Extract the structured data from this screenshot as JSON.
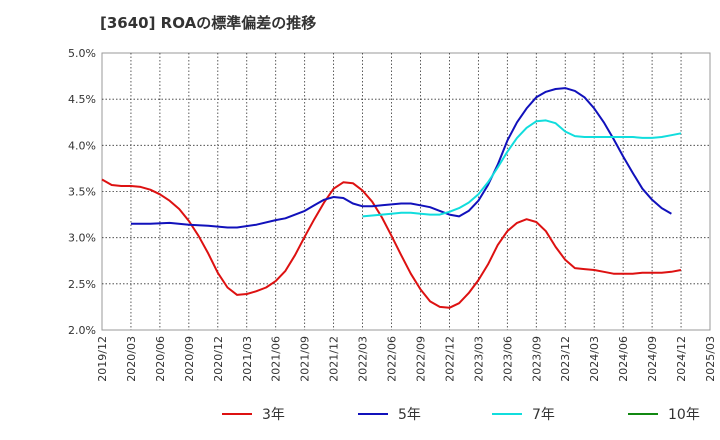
{
  "chart_data": {
    "type": "line",
    "title": "[3640]  ROAの標準偏差の推移",
    "x_ticks": [
      "2019/12",
      "2020/03",
      "2020/06",
      "2020/09",
      "2020/12",
      "2021/03",
      "2021/06",
      "2021/09",
      "2021/12",
      "2022/03",
      "2022/06",
      "2022/09",
      "2022/12",
      "2023/03",
      "2023/06",
      "2023/09",
      "2023/12",
      "2024/03",
      "2024/06",
      "2024/09",
      "2024/12",
      "2025/03"
    ],
    "y_ticks": [
      "2.0%",
      "2.5%",
      "3.0%",
      "3.5%",
      "4.0%",
      "4.5%",
      "5.0%"
    ],
    "ylim": [
      2.0,
      5.0
    ],
    "y_unit": "%",
    "grid": true,
    "legend_position": "bottom",
    "series": [
      {
        "name": "3年",
        "color": "#dd1111",
        "points": [
          [
            "2019/12",
            3.63
          ],
          [
            "2020/01",
            3.57
          ],
          [
            "2020/02",
            3.56
          ],
          [
            "2020/03",
            3.56
          ],
          [
            "2020/04",
            3.55
          ],
          [
            "2020/05",
            3.52
          ],
          [
            "2020/06",
            3.47
          ],
          [
            "2020/07",
            3.4
          ],
          [
            "2020/08",
            3.31
          ],
          [
            "2020/09",
            3.18
          ],
          [
            "2020/10",
            3.02
          ],
          [
            "2020/11",
            2.83
          ],
          [
            "2020/12",
            2.62
          ],
          [
            "2021/01",
            2.46
          ],
          [
            "2021/02",
            2.38
          ],
          [
            "2021/03",
            2.39
          ],
          [
            "2021/04",
            2.42
          ],
          [
            "2021/05",
            2.46
          ],
          [
            "2021/06",
            2.53
          ],
          [
            "2021/07",
            2.64
          ],
          [
            "2021/08",
            2.81
          ],
          [
            "2021/09",
            3.01
          ],
          [
            "2021/10",
            3.2
          ],
          [
            "2021/11",
            3.38
          ],
          [
            "2021/12",
            3.53
          ],
          [
            "2022/01",
            3.6
          ],
          [
            "2022/02",
            3.59
          ],
          [
            "2022/03",
            3.51
          ],
          [
            "2022/04",
            3.39
          ],
          [
            "2022/05",
            3.22
          ],
          [
            "2022/06",
            3.02
          ],
          [
            "2022/07",
            2.81
          ],
          [
            "2022/08",
            2.61
          ],
          [
            "2022/09",
            2.44
          ],
          [
            "2022/10",
            2.31
          ],
          [
            "2022/11",
            2.25
          ],
          [
            "2022/12",
            2.24
          ],
          [
            "2023/01",
            2.29
          ],
          [
            "2023/02",
            2.4
          ],
          [
            "2023/03",
            2.54
          ],
          [
            "2023/04",
            2.71
          ],
          [
            "2023/05",
            2.92
          ],
          [
            "2023/06",
            3.07
          ],
          [
            "2023/07",
            3.16
          ],
          [
            "2023/08",
            3.2
          ],
          [
            "2023/09",
            3.17
          ],
          [
            "2023/10",
            3.07
          ],
          [
            "2023/11",
            2.9
          ],
          [
            "2023/12",
            2.76
          ],
          [
            "2024/01",
            2.67
          ],
          [
            "2024/02",
            2.66
          ],
          [
            "2024/03",
            2.65
          ],
          [
            "2024/04",
            2.63
          ],
          [
            "2024/05",
            2.61
          ],
          [
            "2024/06",
            2.61
          ],
          [
            "2024/07",
            2.61
          ],
          [
            "2024/08",
            2.62
          ],
          [
            "2024/09",
            2.62
          ],
          [
            "2024/10",
            2.62
          ],
          [
            "2024/11",
            2.63
          ],
          [
            "2024/12",
            2.65
          ]
        ]
      },
      {
        "name": "5年",
        "color": "#1111bb",
        "points": [
          [
            "2020/03",
            3.15
          ],
          [
            "2020/05",
            3.15
          ],
          [
            "2020/07",
            3.16
          ],
          [
            "2020/09",
            3.14
          ],
          [
            "2020/11",
            3.13
          ],
          [
            "2021/01",
            3.11
          ],
          [
            "2021/02",
            3.11
          ],
          [
            "2021/04",
            3.14
          ],
          [
            "2021/06",
            3.19
          ],
          [
            "2021/07",
            3.21
          ],
          [
            "2021/09",
            3.29
          ],
          [
            "2021/10",
            3.35
          ],
          [
            "2021/11",
            3.41
          ],
          [
            "2021/12",
            3.44
          ],
          [
            "2022/01",
            3.43
          ],
          [
            "2022/02",
            3.37
          ],
          [
            "2022/03",
            3.34
          ],
          [
            "2022/04",
            3.34
          ],
          [
            "2022/05",
            3.35
          ],
          [
            "2022/06",
            3.36
          ],
          [
            "2022/07",
            3.37
          ],
          [
            "2022/08",
            3.37
          ],
          [
            "2022/09",
            3.35
          ],
          [
            "2022/10",
            3.33
          ],
          [
            "2022/11",
            3.29
          ],
          [
            "2022/12",
            3.25
          ],
          [
            "2023/01",
            3.23
          ],
          [
            "2023/02",
            3.29
          ],
          [
            "2023/03",
            3.4
          ],
          [
            "2023/04",
            3.57
          ],
          [
            "2023/05",
            3.79
          ],
          [
            "2023/06",
            4.05
          ],
          [
            "2023/07",
            4.25
          ],
          [
            "2023/08",
            4.4
          ],
          [
            "2023/09",
            4.52
          ],
          [
            "2023/10",
            4.58
          ],
          [
            "2023/11",
            4.61
          ],
          [
            "2023/12",
            4.62
          ],
          [
            "2024/01",
            4.59
          ],
          [
            "2024/02",
            4.52
          ],
          [
            "2024/03",
            4.4
          ],
          [
            "2024/04",
            4.25
          ],
          [
            "2024/05",
            4.07
          ],
          [
            "2024/06",
            3.88
          ],
          [
            "2024/07",
            3.7
          ],
          [
            "2024/08",
            3.53
          ],
          [
            "2024/09",
            3.41
          ],
          [
            "2024/10",
            3.32
          ],
          [
            "2024/11",
            3.26
          ]
        ]
      },
      {
        "name": "7年",
        "color": "#11dddd",
        "points": [
          [
            "2022/03",
            3.23
          ],
          [
            "2022/04",
            3.24
          ],
          [
            "2022/05",
            3.25
          ],
          [
            "2022/06",
            3.26
          ],
          [
            "2022/07",
            3.27
          ],
          [
            "2022/08",
            3.27
          ],
          [
            "2022/09",
            3.26
          ],
          [
            "2022/10",
            3.25
          ],
          [
            "2022/11",
            3.25
          ],
          [
            "2022/12",
            3.28
          ],
          [
            "2023/01",
            3.32
          ],
          [
            "2023/02",
            3.38
          ],
          [
            "2023/03",
            3.47
          ],
          [
            "2023/04",
            3.6
          ],
          [
            "2023/05",
            3.76
          ],
          [
            "2023/06",
            3.93
          ],
          [
            "2023/07",
            4.08
          ],
          [
            "2023/08",
            4.19
          ],
          [
            "2023/09",
            4.26
          ],
          [
            "2023/10",
            4.27
          ],
          [
            "2023/11",
            4.24
          ],
          [
            "2023/12",
            4.15
          ],
          [
            "2024/01",
            4.1
          ],
          [
            "2024/02",
            4.09
          ],
          [
            "2024/03",
            4.09
          ],
          [
            "2024/04",
            4.09
          ],
          [
            "2024/05",
            4.09
          ],
          [
            "2024/06",
            4.09
          ],
          [
            "2024/07",
            4.09
          ],
          [
            "2024/08",
            4.08
          ],
          [
            "2024/09",
            4.08
          ],
          [
            "2024/10",
            4.09
          ],
          [
            "2024/11",
            4.11
          ],
          [
            "2024/12",
            4.13
          ]
        ]
      },
      {
        "name": "10年",
        "color": "#118811",
        "points": []
      }
    ]
  }
}
